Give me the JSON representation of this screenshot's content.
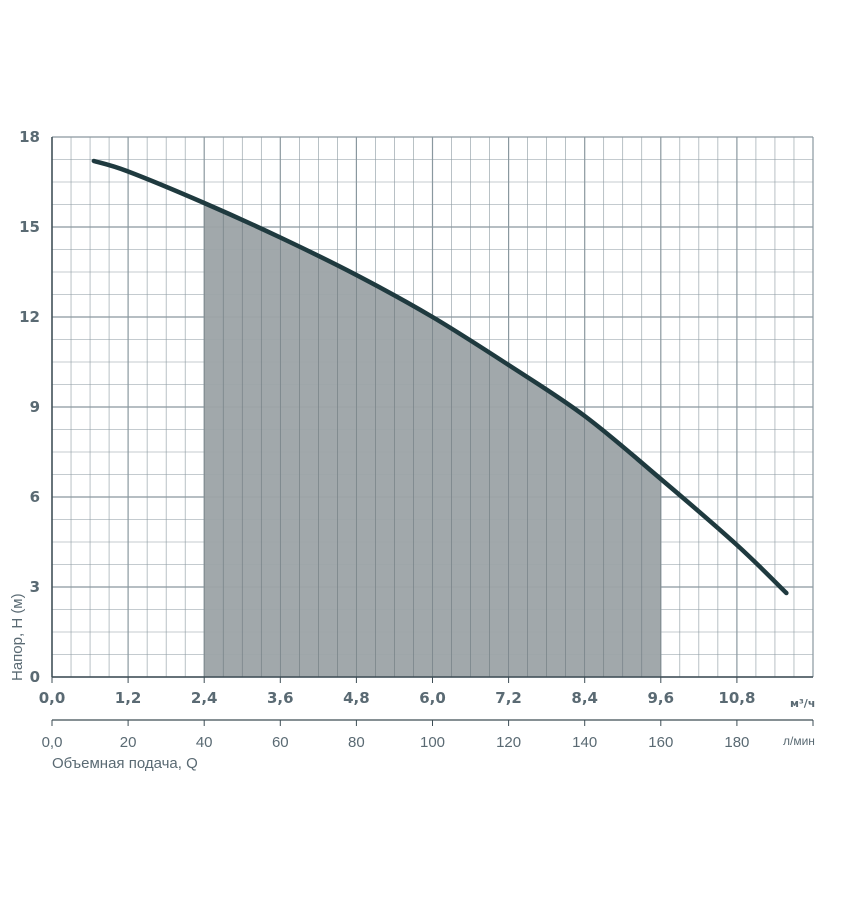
{
  "chart_data": {
    "type": "area",
    "ylabel": "Напор, H (м)",
    "xlabel": "Объемная подача, Q",
    "x_unit_top": "м³/ч",
    "x_unit_bottom": "л/мин",
    "xlim_lpm": [
      0,
      200
    ],
    "ylim": [
      0,
      18
    ],
    "grid": true,
    "x_ticks_m3h": [
      "0,0",
      "1,2",
      "2,4",
      "3,6",
      "4,8",
      "6,0",
      "7,2",
      "8,4",
      "9,6",
      "10,8"
    ],
    "x_ticks_lpm": [
      "0,0",
      "20",
      "40",
      "60",
      "80",
      "100",
      "120",
      "140",
      "160",
      "180"
    ],
    "y_ticks": [
      "0",
      "3",
      "6",
      "9",
      "12",
      "15",
      "18"
    ],
    "series": [
      {
        "x_lpm": [
          11,
          20,
          40,
          60,
          80,
          100,
          120,
          140,
          160,
          180,
          193
        ],
        "y_m": [
          17.2,
          16.85,
          15.8,
          14.65,
          13.4,
          12.0,
          10.4,
          8.7,
          6.6,
          4.4,
          2.8
        ]
      }
    ],
    "highlight_range_lpm": [
      40,
      160
    ],
    "colors": {
      "grid": "#8a989f",
      "curve": "#1f3a3f",
      "highlight": "#9ca3a7",
      "text": "#5a6a73"
    }
  }
}
